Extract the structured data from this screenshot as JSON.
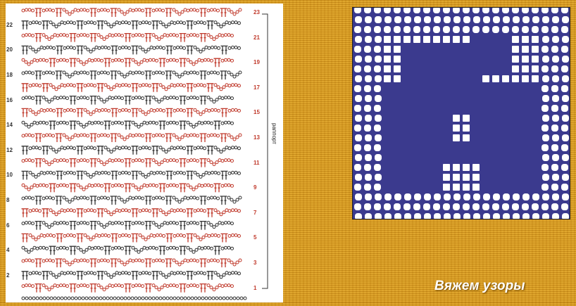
{
  "chart": {
    "even_rows": [
      "22",
      "20",
      "18",
      "16",
      "14",
      "12",
      "10",
      "8",
      "6",
      "4",
      "2"
    ],
    "odd_rows": [
      "23",
      "21",
      "19",
      "17",
      "15",
      "13",
      "11",
      "9",
      "7",
      "5",
      "3",
      "1"
    ],
    "repeat_label": "раппорт",
    "colors": {
      "odd": "#c0392b",
      "even": "#333333"
    }
  },
  "photo": {
    "yarn_color": "#3b3a8e"
  },
  "caption": "Вяжем узоры"
}
